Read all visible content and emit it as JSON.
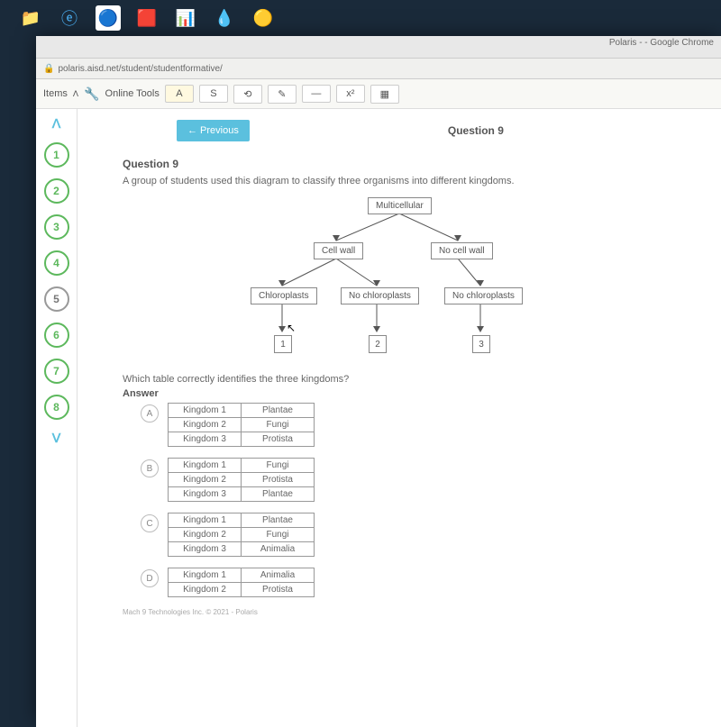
{
  "titlebar": "Polaris - - Google Chrome",
  "url": "polaris.aisd.net/student/studentformative/",
  "toolbar": {
    "items": "Items",
    "online": "Online Tools"
  },
  "btns": {
    "a": "A",
    "s": "S",
    "undo": "⟲",
    "pen": "✎",
    "line": "—",
    "sup": "x²",
    "calc": "▦"
  },
  "nav": {
    "up": "ᐱ",
    "down": "ᐯ",
    "nums": [
      "1",
      "2",
      "3",
      "4",
      "5",
      "6",
      "7",
      "8"
    ]
  },
  "header": {
    "prev": "← Previous",
    "label": "Question 9"
  },
  "q": {
    "title": "Question 9",
    "text": "A group of students used this diagram to classify three organisms into different kingdoms.",
    "nodes": {
      "root": "Multicellular",
      "l1a": "Cell wall",
      "l1b": "No cell wall",
      "l2a": "Chloroplasts",
      "l2b": "No chloroplasts",
      "l2c": "No chloroplasts"
    },
    "boxes": [
      "1",
      "2",
      "3"
    ],
    "q2": "Which table correctly identifies the three kingdoms?",
    "ans": "Answer"
  },
  "options": [
    {
      "letter": "A",
      "rows": [
        [
          "Kingdom 1",
          "Plantae"
        ],
        [
          "Kingdom 2",
          "Fungi"
        ],
        [
          "Kingdom 3",
          "Protista"
        ]
      ]
    },
    {
      "letter": "B",
      "rows": [
        [
          "Kingdom 1",
          "Fungi"
        ],
        [
          "Kingdom 2",
          "Protista"
        ],
        [
          "Kingdom 3",
          "Plantae"
        ]
      ]
    },
    {
      "letter": "C",
      "rows": [
        [
          "Kingdom 1",
          "Plantae"
        ],
        [
          "Kingdom 2",
          "Fungi"
        ],
        [
          "Kingdom 3",
          "Animalia"
        ]
      ]
    },
    {
      "letter": "D",
      "rows": [
        [
          "Kingdom 1",
          "Animalia"
        ],
        [
          "Kingdom 2",
          "Protista"
        ]
      ]
    }
  ],
  "footer": "Mach 9 Technologies Inc. © 2021 - Polaris",
  "colors": {
    "accent": "#5bc0de",
    "green": "#5cb85c"
  }
}
